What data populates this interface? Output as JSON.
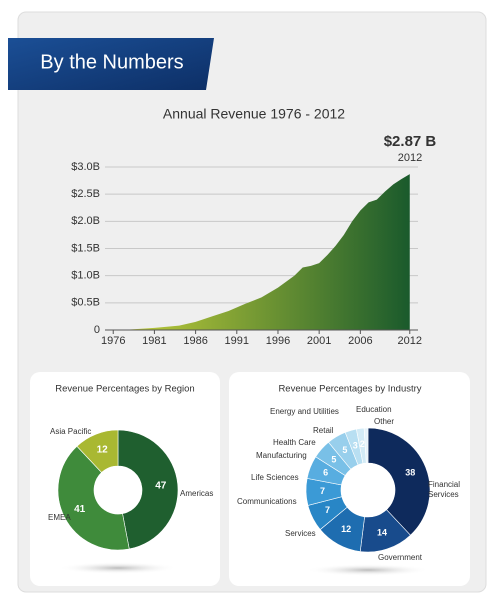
{
  "banner": "By the Numbers",
  "chart_data": [
    {
      "type": "area",
      "title": "Annual Revenue 1976 - 2012",
      "annotation": "$2.87 B",
      "annotation_sub": "2012",
      "x": [
        1976,
        1978,
        1981,
        1984,
        1986,
        1988,
        1990,
        1992,
        1994,
        1996,
        1998,
        1999,
        2000,
        2001,
        2002,
        2003,
        2004,
        2005,
        2006,
        2007,
        2008,
        2009,
        2010,
        2011,
        2012
      ],
      "values": [
        0.0,
        0.01,
        0.04,
        0.08,
        0.15,
        0.25,
        0.35,
        0.48,
        0.6,
        0.78,
        1.0,
        1.15,
        1.18,
        1.23,
        1.38,
        1.55,
        1.75,
        2.0,
        2.2,
        2.35,
        2.4,
        2.55,
        2.68,
        2.78,
        2.87
      ],
      "xlim": [
        1975,
        2013
      ],
      "ylim": [
        0,
        3.0
      ],
      "xticks": [
        1976,
        1981,
        1986,
        1991,
        1996,
        2001,
        2006,
        2012
      ],
      "yticks": [
        0,
        {
          "value": 0.5,
          "label": "$0.5B"
        },
        {
          "value": 1.0,
          "label": "$1.0B"
        },
        {
          "value": 1.5,
          "label": "$1.5B"
        },
        {
          "value": 2.0,
          "label": "$2.0B"
        },
        {
          "value": 2.5,
          "label": "$2.5B"
        },
        {
          "value": 3.0,
          "label": "$3.0B"
        }
      ],
      "grid": true,
      "color_start": "#c9d33a",
      "color_end": "#1a5a2c"
    },
    {
      "type": "donut",
      "title": "Revenue Percentages by Region",
      "categories": [
        "Americas",
        "EMEA",
        "Asia Pacific"
      ],
      "values": [
        47,
        41,
        12
      ],
      "colors": [
        "#1f5f2f",
        "#3f8b3b",
        "#a9b832"
      ]
    },
    {
      "type": "donut",
      "title": "Revenue Percentages by Industry",
      "categories": [
        "Financial Services",
        "Government",
        "Services",
        "Communications",
        "Life Sciences",
        "Manufacturing",
        "Health Care",
        "Retail",
        "Energy and Utilities",
        "Education",
        "Other"
      ],
      "values": [
        38,
        14,
        12,
        7,
        7,
        6,
        5,
        5,
        3,
        2,
        1
      ],
      "colors": [
        "#0e2a5c",
        "#184b8c",
        "#1e6db0",
        "#2886c6",
        "#3b9ad6",
        "#58ade0",
        "#79c0e7",
        "#98cfec",
        "#b8dff2",
        "#d3ebf6",
        "#e6f3fa"
      ]
    }
  ]
}
